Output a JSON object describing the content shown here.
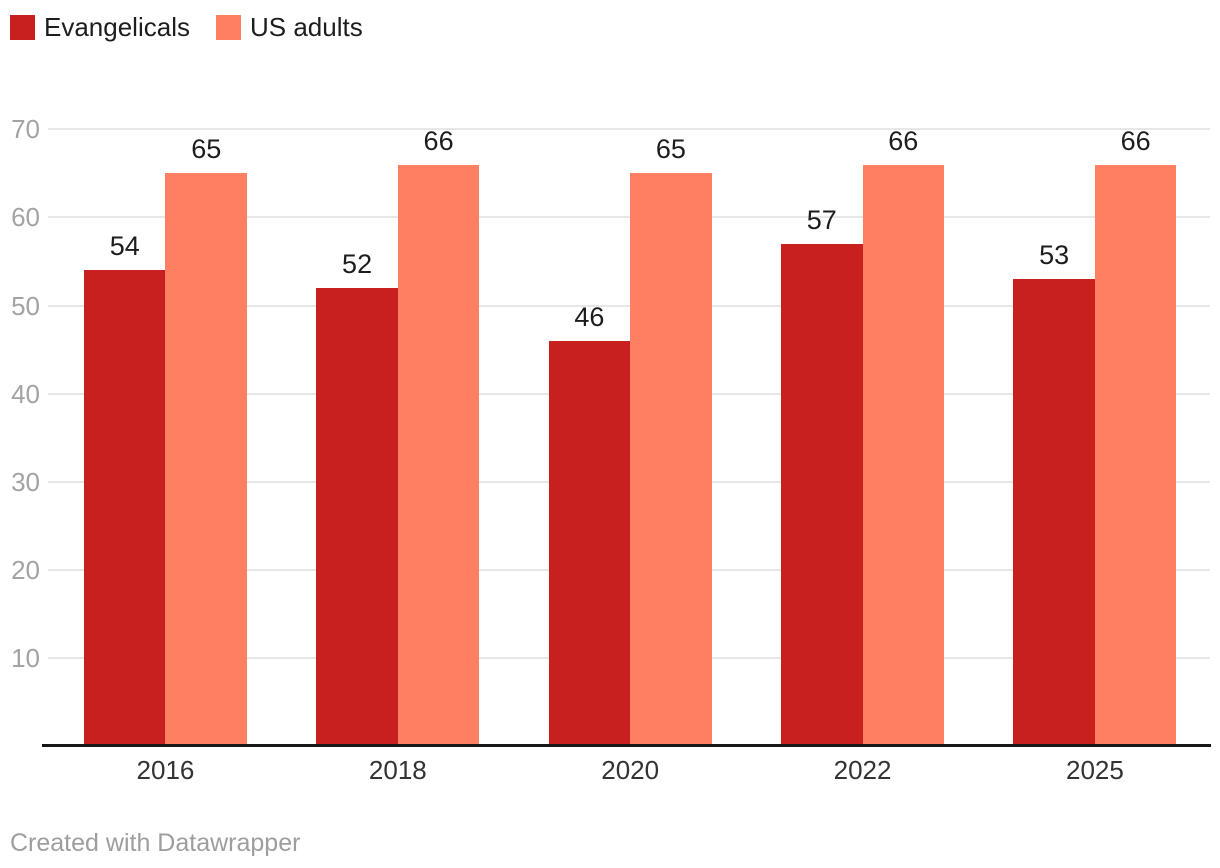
{
  "legend": {
    "items": [
      {
        "label": "Evangelicals",
        "color": "#c7201e"
      },
      {
        "label": "US adults",
        "color": "#fe7f62"
      }
    ]
  },
  "chart_data": {
    "type": "bar",
    "title": "",
    "categories": [
      "2016",
      "2018",
      "2020",
      "2022",
      "2025"
    ],
    "series": [
      {
        "name": "Evangelicals",
        "color": "#c7201e",
        "values": [
          54,
          52,
          46,
          57,
          53
        ]
      },
      {
        "name": "US adults",
        "color": "#fe7f62",
        "values": [
          65,
          66,
          65,
          66,
          66
        ]
      }
    ],
    "xlabel": "",
    "ylabel": "",
    "ylim": [
      0,
      70
    ],
    "y_ticks": [
      10,
      20,
      30,
      40,
      50,
      60,
      70
    ],
    "grid": true,
    "legend_position": "top-left",
    "value_labels": true,
    "colors": {
      "grid": "#e7e7e7",
      "axis": "#161616",
      "tick_label": "#a3a3a3",
      "category_label": "#333333",
      "value_label": "#1d1d1d"
    }
  },
  "footer": {
    "credit": "Created with Datawrapper"
  }
}
